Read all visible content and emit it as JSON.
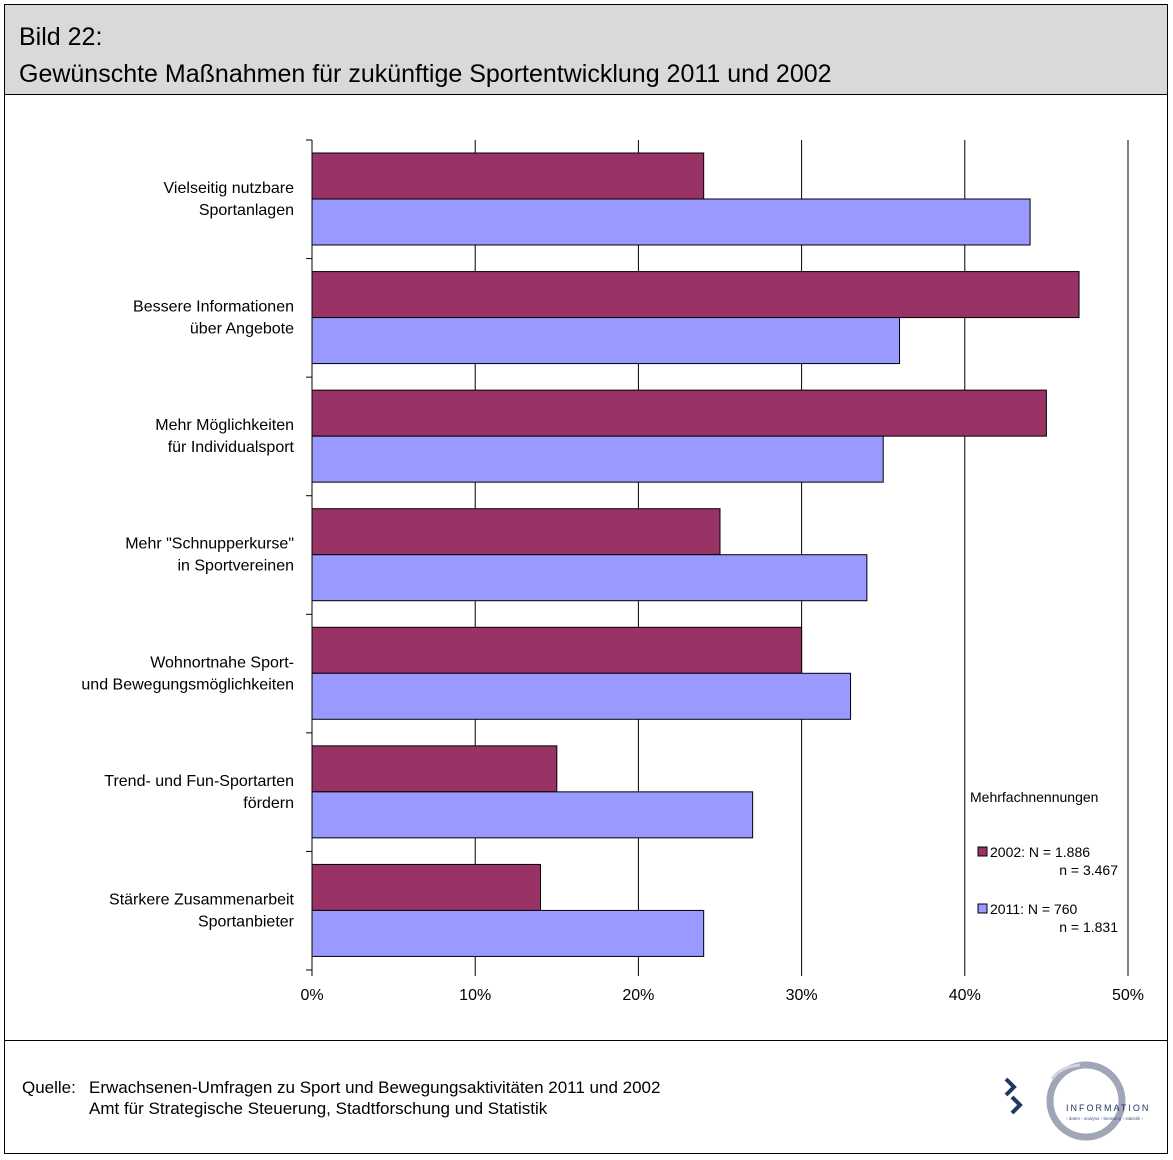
{
  "header": {
    "title_line1": "Bild 22:",
    "title_line2": "Gewünschte Maßnahmen für zukünftige Sportentwicklung 2011 und 2002"
  },
  "footer": {
    "source_label": "Quelle:",
    "source_line1": "Erwachsenen-Umfragen zu Sport und Bewegungsaktivitäten 2011 und 2002",
    "source_line2": "Amt für Strategische Steuerung, Stadtforschung und Statistik"
  },
  "logo": {
    "text": "INFORMATION",
    "subtext": "› daten › analyse › beratung › statistik ›"
  },
  "chart_data": {
    "type": "bar",
    "orientation": "horizontal",
    "categories": [
      [
        "Vielseitig nutzbare",
        "Sportanlagen"
      ],
      [
        "Bessere Informationen",
        "über Angebote"
      ],
      [
        "Mehr Möglichkeiten",
        "für Individualsport"
      ],
      [
        "Mehr \"Schnupperkurse\"",
        "in Sportvereinen"
      ],
      [
        "Wohnortnahe Sport-",
        "und Bewegungsmöglichkeiten"
      ],
      [
        "Trend- und Fun-Sportarten",
        "fördern"
      ],
      [
        "Stärkere Zusammenarbeit",
        "Sportanbieter"
      ]
    ],
    "series": [
      {
        "key": "2002",
        "color": "#993366",
        "values": [
          24,
          47,
          45,
          25,
          30,
          15,
          14
        ]
      },
      {
        "key": "2011",
        "color": "#9999ff",
        "values": [
          44,
          36,
          35,
          34,
          33,
          27,
          24
        ]
      }
    ],
    "xlim": [
      0,
      50
    ],
    "xticks": [
      "0%",
      "10%",
      "20%",
      "30%",
      "40%",
      "50%"
    ],
    "grid": true,
    "legend": {
      "title": "Mehrfachnennungen",
      "entries": [
        {
          "series": "2002",
          "line1": "2002: N = 1.886",
          "line2": "n = 3.467"
        },
        {
          "series": "2011",
          "line1": "2011: N =    760",
          "line2": "n = 1.831"
        }
      ],
      "placement": "bottom-right"
    }
  }
}
